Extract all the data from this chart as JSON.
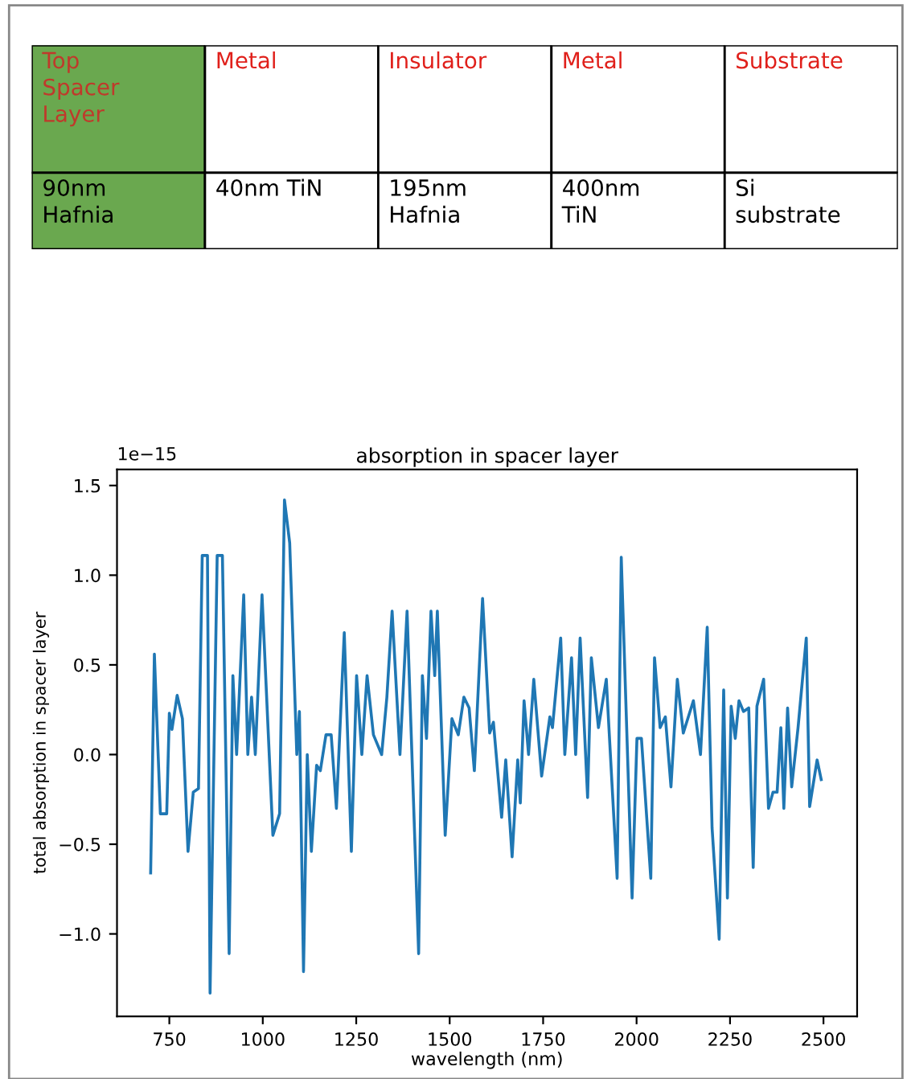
{
  "chart_data": [
    {
      "type": "other",
      "annotations": [
        "Top\nSpacer\nLayer",
        "Metal",
        "Insulator",
        "Metal",
        "Substrate",
        "90nm\nHafnia",
        "40nm TiN",
        "195nm\nHafnia",
        "400nm\nTiN",
        "Si\nsubstrate"
      ]
    },
    {
      "type": "line",
      "title": "absorption in spacer layer",
      "xlabel": "wavelength (nm)",
      "ylabel": "total absorption in spacer layer",
      "annotations": [
        "1e−15"
      ],
      "x": [
        700,
        710,
        726,
        743,
        750,
        757,
        771,
        785,
        800,
        814,
        828,
        838,
        852,
        859,
        878,
        892,
        910,
        920,
        930,
        949,
        960,
        970,
        980,
        998,
        1027,
        1045,
        1058,
        1072,
        1091,
        1098,
        1109,
        1119,
        1130,
        1144,
        1154,
        1169,
        1183,
        1197,
        1218,
        1237,
        1251,
        1265,
        1279,
        1296,
        1318,
        1332,
        1346,
        1367,
        1386,
        1417,
        1427,
        1438,
        1450,
        1460,
        1467,
        1488,
        1506,
        1523,
        1538,
        1552,
        1566,
        1588,
        1607,
        1617,
        1639,
        1650,
        1667,
        1682,
        1689,
        1699,
        1711,
        1725,
        1746,
        1768,
        1775,
        1797,
        1808,
        1826,
        1837,
        1849,
        1869,
        1879,
        1898,
        1919,
        1948,
        1959,
        1988,
        2001,
        2013,
        2038,
        2048,
        2063,
        2077,
        2092,
        2109,
        2125,
        2152,
        2171,
        2189,
        2202,
        2221,
        2233,
        2243,
        2253,
        2264,
        2274,
        2286,
        2300,
        2312,
        2322,
        2340,
        2353,
        2365,
        2376,
        2386,
        2394,
        2404,
        2415,
        2432,
        2454,
        2463,
        2483,
        2494
      ],
      "series": [
        {
          "color": "#1f77b4",
          "values": [
            -0.66,
            0.56,
            -0.33,
            -0.33,
            0.23,
            0.14,
            0.33,
            0.2,
            -0.54,
            -0.21,
            -0.19,
            1.11,
            1.11,
            -1.33,
            1.11,
            1.11,
            -1.11,
            0.44,
            0,
            0.89,
            0,
            0.32,
            0,
            0.89,
            -0.45,
            -0.33,
            1.42,
            1.18,
            0,
            0.24,
            -1.21,
            0,
            -0.54,
            -0.06,
            -0.09,
            0.11,
            0.11,
            -0.3,
            0.68,
            -0.54,
            0.44,
            0,
            0.44,
            0.11,
            0,
            0.32,
            0.8,
            0,
            0.8,
            -1.11,
            0.44,
            0.09,
            0.8,
            0.44,
            0.8,
            -0.45,
            0.2,
            0.11,
            0.32,
            0.26,
            -0.09,
            0.87,
            0.12,
            0.18,
            -0.35,
            -0.03,
            -0.57,
            -0.03,
            -0.27,
            0.3,
            0,
            0.42,
            -0.12,
            0.21,
            0.15,
            0.65,
            0,
            0.54,
            0,
            0.65,
            -0.24,
            0.54,
            0.15,
            0.42,
            -0.69,
            1.1,
            -0.8,
            0.09,
            0.09,
            -0.69,
            0.54,
            0.15,
            0.21,
            -0.18,
            0.42,
            0.12,
            0.3,
            0,
            0.71,
            -0.41,
            -1.03,
            0.36,
            -0.8,
            0.27,
            0.09,
            0.3,
            0.24,
            0.26,
            -0.63,
            0.27,
            0.42,
            -0.3,
            -0.21,
            -0.21,
            0.15,
            -0.3,
            0.26,
            -0.18,
            0.15,
            0.65,
            -0.29,
            -0.03,
            -0.14
          ]
        }
      ],
      "xlim": [
        610,
        2590
      ],
      "xticks": [
        750,
        1000,
        1250,
        1500,
        1750,
        2000,
        2250,
        2500
      ],
      "ylim": [
        -1.46,
        1.59
      ],
      "yticks": [
        {
          "value": -1.0,
          "label": "−1.0"
        },
        {
          "value": -0.5,
          "label": "−0.5"
        },
        {
          "value": 0.0,
          "label": "0.0"
        },
        {
          "value": 0.5,
          "label": "0.5"
        },
        {
          "value": 1.0,
          "label": "1.0"
        },
        {
          "value": 1.5,
          "label": "1.5"
        }
      ],
      "grid": false
    }
  ]
}
